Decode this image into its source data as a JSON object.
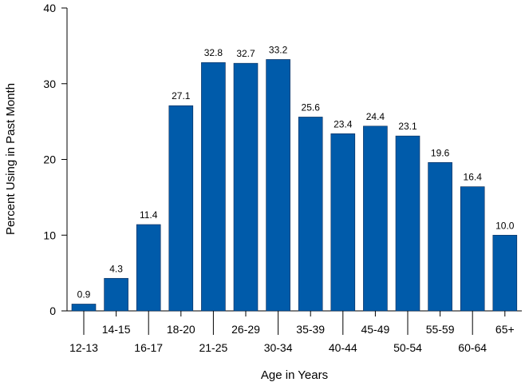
{
  "chart_data": {
    "type": "bar",
    "xlabel": "Age in Years",
    "ylabel": "Percent Using in Past Month",
    "ylim": [
      0,
      40
    ],
    "yticks": [
      "0",
      "10",
      "20",
      "30",
      "40"
    ],
    "categories": [
      "12-13",
      "14-15",
      "16-17",
      "18-20",
      "21-25",
      "26-29",
      "30-34",
      "35-39",
      "40-44",
      "45-49",
      "50-54",
      "55-59",
      "60-64",
      "65+"
    ],
    "values": [
      0.9,
      4.3,
      11.4,
      27.1,
      32.8,
      32.7,
      33.2,
      25.6,
      23.4,
      24.4,
      23.1,
      19.6,
      16.4,
      10.0
    ],
    "value_labels": [
      "0.9",
      "4.3",
      "11.4",
      "27.1",
      "32.8",
      "32.7",
      "33.2",
      "25.6",
      "23.4",
      "24.4",
      "23.1",
      "19.6",
      "16.4",
      "10.0"
    ],
    "bar_color": "#005BAA",
    "grid": false,
    "legend": "none"
  }
}
